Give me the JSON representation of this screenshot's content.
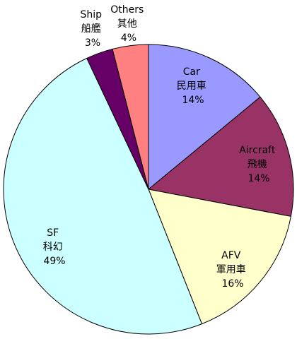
{
  "chart_data": {
    "type": "pie",
    "slices": [
      {
        "name": "Car",
        "name_zh": "民用車",
        "value": 14,
        "value_label": "14%",
        "color": "#9999ff"
      },
      {
        "name": "Aircraft",
        "name_zh": "飛機",
        "value": 14,
        "value_label": "14%",
        "color": "#993366"
      },
      {
        "name": "AFV",
        "name_zh": "軍用車",
        "value": 16,
        "value_label": "16%",
        "color": "#ffffcc"
      },
      {
        "name": "SF",
        "name_zh": "科幻",
        "value": 49,
        "value_label": "49%",
        "color": "#ccffff"
      },
      {
        "name": "Ship",
        "name_zh": "船艦",
        "value": 3,
        "value_label": "3%",
        "color": "#660066"
      },
      {
        "name": "Others",
        "name_zh": "其他",
        "value": 4,
        "value_label": "4%",
        "color": "#ff8080"
      }
    ]
  }
}
